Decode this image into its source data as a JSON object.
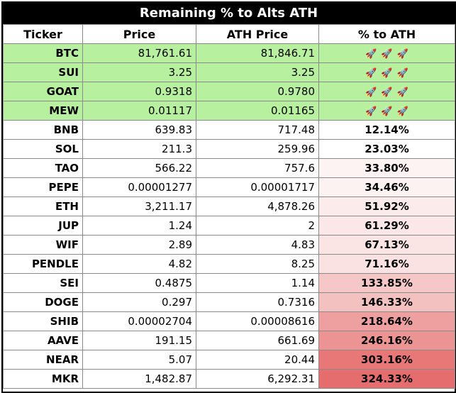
{
  "title": "Remaining % to Alts ATH",
  "headers": [
    "Ticker",
    "Price",
    "ATH Price",
    "% to ATH"
  ],
  "rocket_icon": "🚀",
  "ath_color": "#b7f1a0",
  "rows": [
    {
      "ticker": "BTC",
      "price": "81,761.61",
      "ath": "81,846.71",
      "pct": "",
      "at_ath": true
    },
    {
      "ticker": "SUI",
      "price": "3.25",
      "ath": "3.25",
      "pct": "",
      "at_ath": true
    },
    {
      "ticker": "GOAT",
      "price": "0.9318",
      "ath": "0.9780",
      "pct": "",
      "at_ath": true
    },
    {
      "ticker": "MEW",
      "price": "0.01117",
      "ath": "0.01165",
      "pct": "",
      "at_ath": true
    },
    {
      "ticker": "BNB",
      "price": "639.83",
      "ath": "717.48",
      "pct": "12.14%",
      "bg": "#ffffff"
    },
    {
      "ticker": "SOL",
      "price": "211.3",
      "ath": "259.96",
      "pct": "23.03%",
      "bg": "#ffffff"
    },
    {
      "ticker": "TAO",
      "price": "566.22",
      "ath": "757.6",
      "pct": "33.80%",
      "bg": "#fdf3f3"
    },
    {
      "ticker": "PEPE",
      "price": "0.00001277",
      "ath": "0.00001717",
      "pct": "34.46%",
      "bg": "#fdf2f2"
    },
    {
      "ticker": "ETH",
      "price": "3,211.17",
      "ath": "4,878.26",
      "pct": "51.92%",
      "bg": "#fcebeb"
    },
    {
      "ticker": "JUP",
      "price": "1.24",
      "ath": "2",
      "pct": "61.29%",
      "bg": "#fbe7e7"
    },
    {
      "ticker": "WIF",
      "price": "2.89",
      "ath": "4.83",
      "pct": "67.13%",
      "bg": "#fae4e4"
    },
    {
      "ticker": "PENDLE",
      "price": "4.82",
      "ath": "8.25",
      "pct": "71.16%",
      "bg": "#fae2e2"
    },
    {
      "ticker": "SEI",
      "price": "0.4875",
      "ath": "1.14",
      "pct": "133.85%",
      "bg": "#f5c7c7"
    },
    {
      "ticker": "DOGE",
      "price": "0.297",
      "ath": "0.7316",
      "pct": "146.33%",
      "bg": "#f4c1c1"
    },
    {
      "ticker": "SHIB",
      "price": "0.00002704",
      "ath": "0.00008616",
      "pct": "218.64%",
      "bg": "#ee9f9f"
    },
    {
      "ticker": "AAVE",
      "price": "191.15",
      "ath": "661.69",
      "pct": "246.16%",
      "bg": "#ec9393"
    },
    {
      "ticker": "NEAR",
      "price": "5.07",
      "ath": "20.44",
      "pct": "303.16%",
      "bg": "#e87878"
    },
    {
      "ticker": "MKR",
      "price": "1,482.87",
      "ath": "6,292.31",
      "pct": "324.33%",
      "bg": "#e66d6d"
    }
  ]
}
